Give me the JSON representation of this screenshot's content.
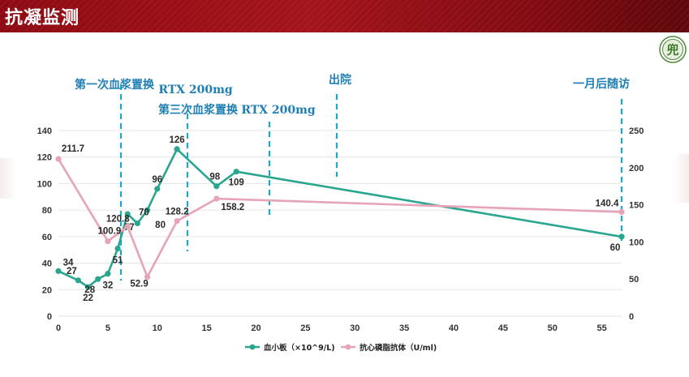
{
  "header": {
    "title": "抗凝监测"
  },
  "logo": {
    "glyph": "兜"
  },
  "chart_data": {
    "type": "line",
    "x_range": [
      0,
      57
    ],
    "x_ticks": [
      "0",
      "5",
      "10",
      "15",
      "20",
      "25",
      "30",
      "35",
      "40",
      "45",
      "50",
      "55"
    ],
    "y_left": {
      "range": [
        0,
        140
      ],
      "ticks": [
        "0",
        "20",
        "40",
        "60",
        "80",
        "100",
        "120",
        "140"
      ]
    },
    "y_right": {
      "range": [
        0,
        250
      ],
      "ticks": [
        "0",
        "50",
        "100",
        "150",
        "200",
        "250"
      ]
    },
    "grid": true,
    "legend_position": "bottom-center",
    "series": [
      {
        "name": "血小板（×10^9/L)",
        "color": "#2aa58e",
        "axis": "left",
        "x": [
          0,
          2,
          3,
          4,
          5,
          6,
          7,
          8,
          9,
          10,
          12,
          16,
          18,
          57
        ],
        "y": [
          34,
          27,
          22,
          28,
          32,
          51,
          77,
          70,
          80,
          96,
          126,
          98,
          109,
          60
        ],
        "labels": [
          "34",
          "27",
          "22",
          "28",
          "32",
          "51",
          "77",
          "70",
          "80",
          "96",
          "126",
          "98",
          "109",
          "60"
        ]
      },
      {
        "name": "抗心磷脂抗体（U/ml)",
        "color": "#e7a3b7",
        "axis": "right",
        "x": [
          0,
          5,
          7,
          9,
          12,
          16,
          57
        ],
        "y": [
          211.7,
          100.9,
          120.8,
          52.9,
          128.2,
          158.2,
          140.4
        ],
        "labels": [
          "211.7",
          "100.9",
          "120.8",
          "52.9",
          "128.2",
          "158.2",
          "140.4"
        ]
      }
    ],
    "annotations": [
      {
        "x": 4,
        "text": "第一次血浆置换"
      },
      {
        "x": 8.2,
        "text": "RTX 200mg"
      },
      {
        "x": 8.8,
        "text": "第三次血浆置换"
      },
      {
        "x": 14,
        "text": "RTX 200mg"
      },
      {
        "x": 18,
        "text": "出院"
      },
      {
        "x": 57,
        "text": "一月后随访"
      }
    ]
  }
}
